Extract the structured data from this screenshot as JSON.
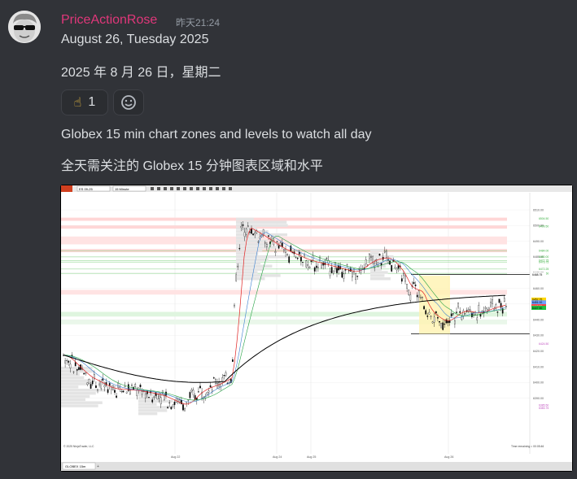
{
  "message": {
    "username": "PriceActionRose",
    "timestamp": "昨天21:24",
    "lines": [
      "August 26, Tuesday  2025",
      "2025 年 8 月 26 日，星期二",
      "Globex 15 min chart zones and levels to watch all day",
      "全天需关注的 Globex 15 分钟图表区域和水平"
    ],
    "reactions": [
      {
        "emoji": "☝",
        "count": "1"
      }
    ],
    "add_reaction_icon": "smiley-add-icon",
    "avatar_icon": "avatar-sunglasses-icon"
  },
  "chart": {
    "toolbar_symbol": "ES 09-25",
    "toolbar_interval": "15 Minute",
    "copyright": "© 2025 NinjaTrader, LLC",
    "time_remaining": "Time remaining = 00:05:46",
    "tab_label": "GLOBEX 15m",
    "x_labels": [
      "Aug 22",
      "Aug 24",
      "Aug 25",
      "Aug 26"
    ],
    "y_labels": [
      "6510.00",
      "6500.00",
      "6490.00",
      "6480.00",
      "6470.00",
      "6460.00",
      "6450.00",
      "6440.00",
      "6430.00",
      "6420.00",
      "6410.00",
      "6400.00",
      "6390.00"
    ],
    "level_labels": [
      {
        "text": "6504.50",
        "color": "#3cb043"
      },
      {
        "text": "6499.50",
        "color": "#3cb043"
      },
      {
        "text": "6484.00",
        "color": "#3cb043"
      },
      {
        "text": "6480.00",
        "color": "#3cb043"
      },
      {
        "text": "6477.75",
        "color": "#3cb043"
      },
      {
        "text": "6476.75",
        "color": "#3cb043"
      },
      {
        "text": "6472.25",
        "color": "#3cb043"
      },
      {
        "text": "6469.50",
        "color": "#3cb043"
      },
      {
        "text": "6424.50",
        "color": "#c050c0"
      },
      {
        "text": "6385.50",
        "color": "#c050c0"
      },
      {
        "text": "6383.75",
        "color": "#c050c0"
      }
    ],
    "price_tags": [
      {
        "text": "6468.75",
        "bg": "#ffffff",
        "fg": "#000000"
      },
      {
        "text": "6452.75",
        "bg": "#ffd700",
        "fg": "#000000"
      },
      {
        "text": "6451.00",
        "bg": "#6fa0ff",
        "fg": "#000000"
      },
      {
        "text": "6448.50",
        "bg": "#ff3b3b",
        "fg": "#ffffff"
      },
      {
        "text": "6447.50",
        "bg": "#20c040",
        "fg": "#000000"
      }
    ]
  }
}
